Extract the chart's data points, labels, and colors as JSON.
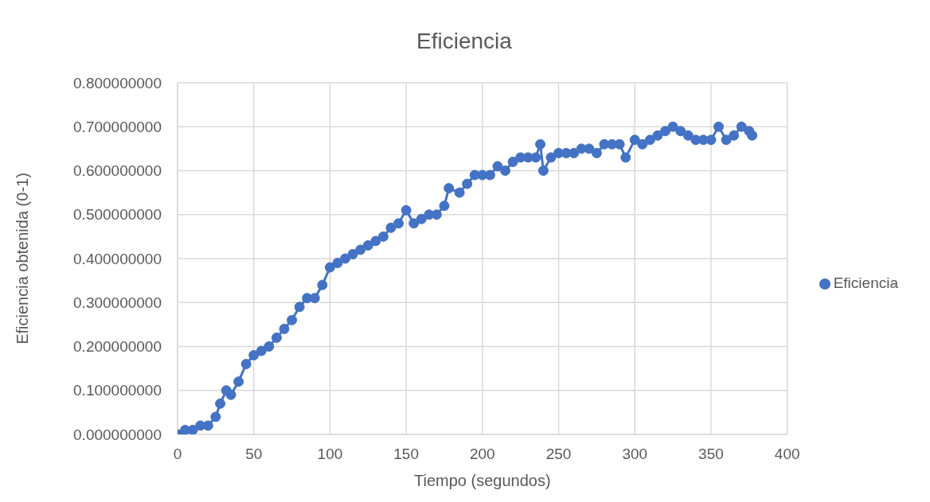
{
  "chart_data": {
    "type": "line",
    "title": "Eficiencia",
    "xlabel": "Tiempo (segundos)",
    "ylabel": "Eficiencia obtenida (0-1)",
    "x": [
      0,
      5,
      10,
      15,
      20,
      25,
      28,
      32,
      35,
      40,
      45,
      50,
      55,
      60,
      65,
      70,
      75,
      80,
      85,
      90,
      95,
      100,
      105,
      110,
      115,
      120,
      125,
      130,
      135,
      140,
      145,
      150,
      155,
      160,
      165,
      170,
      175,
      178,
      185,
      190,
      195,
      200,
      205,
      210,
      215,
      220,
      225,
      230,
      235,
      238,
      240,
      245,
      250,
      255,
      260,
      265,
      270,
      275,
      280,
      285,
      290,
      294,
      300,
      305,
      310,
      315,
      320,
      325,
      330,
      335,
      340,
      345,
      350,
      355,
      360,
      365,
      370,
      375,
      377
    ],
    "series": [
      {
        "name": "Eficiencia",
        "color": "#4472c4",
        "values": [
          0,
          0.01,
          0.01,
          0.02,
          0.02,
          0.04,
          0.07,
          0.1,
          0.09,
          0.12,
          0.16,
          0.18,
          0.19,
          0.2,
          0.22,
          0.24,
          0.26,
          0.29,
          0.31,
          0.31,
          0.34,
          0.38,
          0.39,
          0.4,
          0.41,
          0.42,
          0.43,
          0.44,
          0.45,
          0.47,
          0.48,
          0.51,
          0.48,
          0.49,
          0.5,
          0.5,
          0.52,
          0.56,
          0.55,
          0.57,
          0.59,
          0.59,
          0.59,
          0.61,
          0.6,
          0.62,
          0.63,
          0.63,
          0.63,
          0.66,
          0.6,
          0.63,
          0.64,
          0.64,
          0.64,
          0.65,
          0.65,
          0.64,
          0.66,
          0.66,
          0.66,
          0.63,
          0.67,
          0.66,
          0.67,
          0.68,
          0.69,
          0.7,
          0.69,
          0.68,
          0.67,
          0.67,
          0.67,
          0.7,
          0.67,
          0.68,
          0.7,
          0.69,
          0.68
        ]
      }
    ],
    "xlim": [
      0,
      400
    ],
    "xticks": [
      0,
      50,
      100,
      150,
      200,
      250,
      300,
      350,
      400
    ],
    "ylim": [
      0,
      0.8
    ],
    "yticks": [
      {
        "value": 0,
        "label": "0.000000000"
      },
      {
        "value": 0.1,
        "label": "0.100000000"
      },
      {
        "value": 0.2,
        "label": "0.200000000"
      },
      {
        "value": 0.3,
        "label": "0.300000000"
      },
      {
        "value": 0.4,
        "label": "0.400000000"
      },
      {
        "value": 0.5,
        "label": "0.500000000"
      },
      {
        "value": 0.6,
        "label": "0.600000000"
      },
      {
        "value": 0.7,
        "label": "0.700000000"
      },
      {
        "value": 0.8,
        "label": "0.800000000"
      }
    ],
    "grid": true,
    "legend": "right",
    "marker": "circle",
    "line_style": "solid"
  }
}
